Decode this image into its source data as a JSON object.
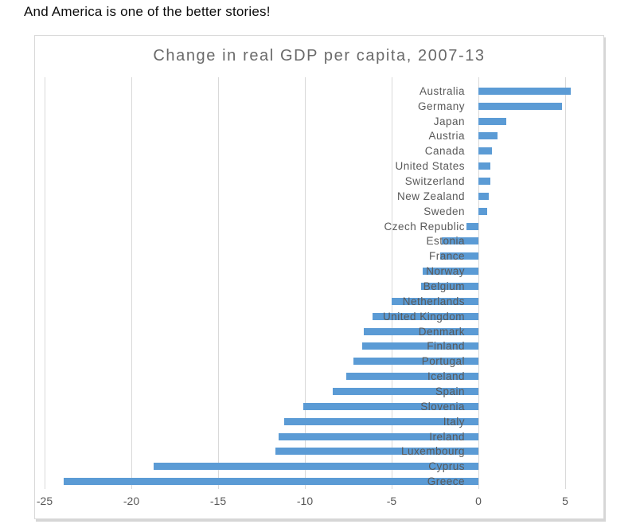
{
  "heading": {
    "text": "And America is one of the better stories!"
  },
  "chart_data": {
    "type": "bar",
    "orientation": "horizontal",
    "title": "Change in real GDP per capita, 2007-13",
    "categories": [
      "Australia",
      "Germany",
      "Japan",
      "Austria",
      "Canada",
      "United States",
      "Switzerland",
      "New Zealand",
      "Sweden",
      "Czech Republic",
      "Estonia",
      "France",
      "Norway",
      "Belgium",
      "Netherlands",
      "United Kingdom",
      "Denmark",
      "Finland",
      "Portugal",
      "Iceland",
      "Spain",
      "Slovenia",
      "Italy",
      "Ireland",
      "Luxembourg",
      "Cyprus",
      "Greece"
    ],
    "values": [
      5.3,
      4.8,
      1.6,
      1.1,
      0.8,
      0.7,
      0.7,
      0.6,
      0.5,
      -0.7,
      -2.1,
      -2.2,
      -3.2,
      -3.3,
      -5.0,
      -6.1,
      -6.6,
      -6.7,
      -7.2,
      -7.6,
      -8.4,
      -10.1,
      -11.2,
      -11.5,
      -11.7,
      -18.7,
      -23.9
    ],
    "x_ticks": [
      -25,
      -20,
      -15,
      -10,
      -5,
      0,
      5
    ],
    "xlim": [
      -25.4,
      7.3
    ],
    "xlabel": "",
    "ylabel": "",
    "grid": true,
    "legend": "none",
    "bar_color": "#5b9bd5",
    "gridline_color": "#d9d9d9",
    "axis_text_color": "#595959",
    "title_color": "#6a6a6a"
  }
}
